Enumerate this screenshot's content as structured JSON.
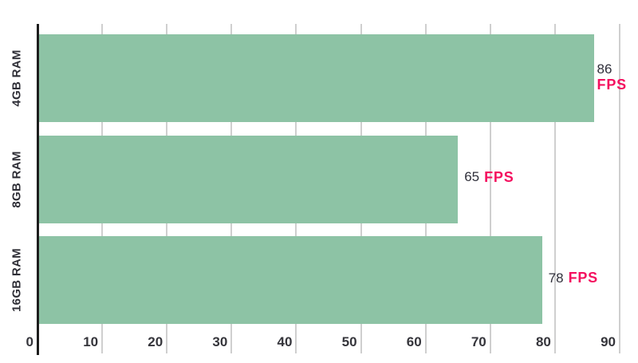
{
  "chart_data": {
    "type": "bar",
    "orientation": "horizontal",
    "title": "",
    "xlabel": "",
    "ylabel": "",
    "categories": [
      "4GB RAM",
      "8GB RAM",
      "16GB RAM"
    ],
    "values": [
      86,
      65,
      78
    ],
    "value_suffix": "FPS",
    "xlim": [
      0,
      90
    ],
    "x_ticks": [
      "0",
      "10",
      "20",
      "30",
      "40",
      "50",
      "60",
      "70",
      "80",
      "90"
    ],
    "grid": true,
    "legend": false,
    "colors": {
      "bar": "#8dc3a5",
      "gridline": "#cfcfcf",
      "axis_line": "#1d1d1d",
      "tick_label": "#35353b",
      "category_label": "#2e2e36",
      "value_number": "#2f2f3a",
      "value_suffix": "#f4105f",
      "background": "#ffffff"
    }
  }
}
